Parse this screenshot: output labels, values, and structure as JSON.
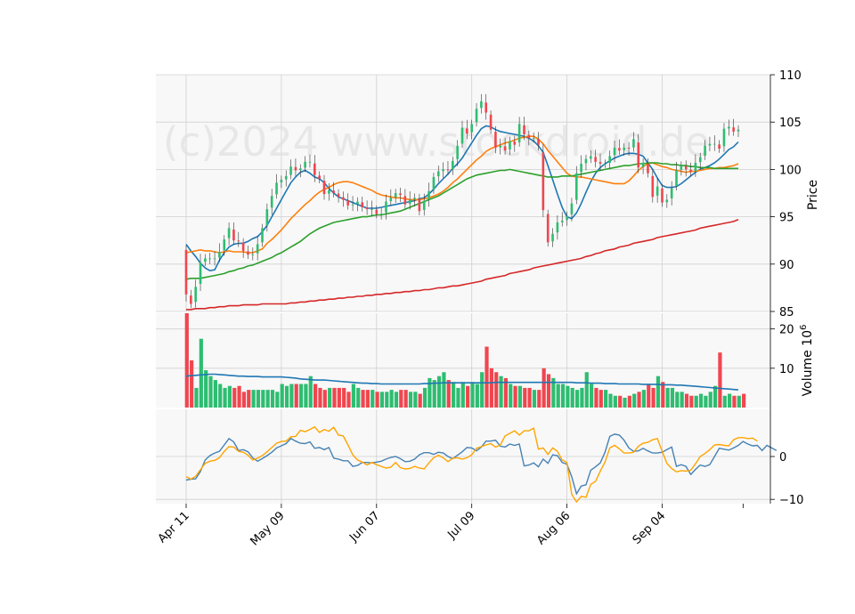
{
  "chart_data": {
    "type": "candlestick",
    "watermark": "(c)2024 www.stockdroid.de",
    "x_tick_labels": [
      "Apr 11",
      "May 09",
      "Jun 07",
      "Jul 09",
      "Aug 06",
      "Sep 04"
    ],
    "x_tick_index": [
      0,
      20,
      40,
      60,
      80,
      100
    ],
    "price_panel": {
      "ylabel": "Price",
      "ylim": [
        85,
        110
      ],
      "yticks": [
        "85",
        "90",
        "95",
        "100",
        "105",
        "110"
      ],
      "up_color": "#2ebd71",
      "down_color": "#f0464f",
      "close": [
        86.8,
        85.8,
        87.6,
        90.2,
        90.6,
        90.6,
        90.6,
        91.3,
        92.6,
        93.8,
        92.5,
        92.4,
        91.4,
        91.0,
        91.0,
        92.1,
        93.8,
        95.8,
        97.2,
        98.6,
        98.9,
        99.3,
        100.3,
        99.9,
        100.1,
        100.8,
        100.8,
        99.4,
        99.0,
        97.4,
        97.8,
        97.5,
        97.1,
        96.8,
        96.2,
        96.3,
        96.6,
        96.0,
        95.8,
        95.8,
        95.3,
        95.3,
        96.6,
        97.0,
        97.5,
        97.3,
        96.3,
        96.8,
        97.0,
        95.6,
        96.7,
        97.7,
        99.2,
        99.8,
        100.0,
        99.9,
        100.9,
        102.5,
        104.4,
        103.8,
        104.8,
        106.4,
        107.2,
        106.0,
        104.2,
        102.3,
        102.5,
        102.0,
        103.0,
        102.6,
        104.8,
        103.7,
        103.3,
        103.3,
        102.6,
        95.7,
        92.3,
        93.2,
        94.4,
        94.6,
        95.1,
        96.4,
        99.6,
        100.6,
        101.1,
        101.4,
        100.8,
        100.6,
        100.6,
        101.4,
        102.3,
        102.0,
        102.3,
        102.2,
        103.2,
        100.2,
        100.7,
        99.6,
        97.1,
        98.2,
        96.5,
        96.8,
        98.0,
        99.9,
        100.4,
        100.0,
        99.7,
        100.7,
        101.3,
        102.5,
        102.7,
        102.7,
        102.2,
        104.3,
        104.5,
        104.0,
        104.2
      ],
      "overlays": [
        {
          "color": "#1f77b4",
          "values": [
            92.1,
            91.4,
            90.8,
            90.1,
            89.6,
            89.3,
            89.4,
            90.4,
            91.2,
            91.8,
            92.1,
            92.2,
            92.2,
            92.4,
            92.7,
            92.9,
            93.4,
            94.1,
            95.0,
            95.9,
            96.8,
            97.7,
            98.6,
            99.2,
            99.7,
            99.9,
            99.6,
            99.2,
            99.0,
            98.6,
            98.0,
            97.5,
            97.1,
            96.9,
            96.7,
            96.5,
            96.3,
            96.1,
            95.9,
            95.9,
            95.9,
            96.0,
            96.1,
            96.2,
            96.3,
            96.4,
            96.5,
            96.6,
            96.7,
            96.9,
            97.0,
            97.4,
            97.9,
            98.5,
            99.0,
            99.5,
            100.1,
            100.6,
            101.2,
            102.0,
            102.8,
            103.6,
            104.3,
            104.6,
            104.5,
            104.2,
            104.0,
            103.9,
            103.8,
            103.7,
            103.6,
            103.5,
            103.3,
            103.0,
            102.5,
            101.8,
            100.4,
            98.9,
            97.4,
            96.0,
            95.0,
            94.8,
            95.4,
            96.4,
            97.6,
            98.7,
            99.6,
            100.2,
            100.6,
            100.9,
            101.2,
            101.4,
            101.6,
            101.7,
            101.7,
            101.6,
            101.4,
            100.7,
            100.0,
            99.1,
            98.3,
            98.1,
            98.1,
            98.2,
            98.5,
            98.9,
            99.3,
            99.7,
            100.0,
            100.2,
            100.4,
            100.7,
            101.1,
            101.6,
            102.1,
            102.4,
            102.9
          ]
        },
        {
          "color": "#ff7f0e",
          "values": [
            91.2,
            91.3,
            91.4,
            91.5,
            91.4,
            91.4,
            91.3,
            91.2,
            91.3,
            91.4,
            91.3,
            91.3,
            91.3,
            91.2,
            91.2,
            91.4,
            91.6,
            92.2,
            92.6,
            93.1,
            93.6,
            94.2,
            94.8,
            95.3,
            95.8,
            96.3,
            96.7,
            97.2,
            97.6,
            97.9,
            98.1,
            98.4,
            98.6,
            98.7,
            98.7,
            98.6,
            98.4,
            98.2,
            98.0,
            97.8,
            97.5,
            97.3,
            97.2,
            97.1,
            97.0,
            97.0,
            96.9,
            96.8,
            96.8,
            96.8,
            96.9,
            97.0,
            97.2,
            97.4,
            97.7,
            98.1,
            98.6,
            99.0,
            99.5,
            100.0,
            100.5,
            101.0,
            101.4,
            101.9,
            102.2,
            102.4,
            102.6,
            102.8,
            102.9,
            103.1,
            103.3,
            103.4,
            103.5,
            103.5,
            103.2,
            102.7,
            102.0,
            101.4,
            100.8,
            100.2,
            99.6,
            99.3,
            99.2,
            99.2,
            99.1,
            99.0,
            98.9,
            98.8,
            98.7,
            98.6,
            98.5,
            98.5,
            98.5,
            98.8,
            99.3,
            99.9,
            100.3,
            100.6,
            100.7,
            100.5,
            100.3,
            100.2,
            100.0,
            99.9,
            99.8,
            99.7,
            99.8,
            99.8,
            99.9,
            100.0,
            100.1,
            100.1,
            100.2,
            100.2,
            100.3,
            100.4,
            100.6
          ]
        },
        {
          "color": "#2ca02c",
          "values": [
            88.4,
            88.5,
            88.5,
            88.5,
            88.6,
            88.7,
            88.8,
            88.9,
            89.0,
            89.2,
            89.3,
            89.5,
            89.6,
            89.8,
            89.9,
            90.1,
            90.3,
            90.5,
            90.7,
            91.0,
            91.2,
            91.5,
            91.8,
            92.1,
            92.4,
            92.8,
            93.2,
            93.5,
            93.8,
            94.0,
            94.2,
            94.4,
            94.5,
            94.6,
            94.7,
            94.8,
            94.9,
            95.0,
            95.0,
            95.1,
            95.2,
            95.2,
            95.3,
            95.4,
            95.5,
            95.6,
            95.8,
            96.0,
            96.2,
            96.4,
            96.6,
            96.8,
            97.0,
            97.2,
            97.5,
            97.8,
            98.1,
            98.4,
            98.7,
            99.0,
            99.2,
            99.4,
            99.5,
            99.6,
            99.7,
            99.8,
            99.9,
            99.9,
            100.0,
            99.9,
            99.8,
            99.7,
            99.6,
            99.5,
            99.4,
            99.3,
            99.2,
            99.2,
            99.2,
            99.3,
            99.3,
            99.3,
            99.4,
            99.5,
            99.6,
            99.7,
            99.8,
            99.9,
            100.0,
            100.1,
            100.2,
            100.3,
            100.4,
            100.4,
            100.5,
            100.6,
            100.6,
            100.7,
            100.7,
            100.7,
            100.6,
            100.6,
            100.5,
            100.5,
            100.4,
            100.4,
            100.3,
            100.3,
            100.2,
            100.2,
            100.2,
            100.1,
            100.1,
            100.1,
            100.1,
            100.1,
            100.1
          ]
        },
        {
          "color": "#d62728",
          "values": [
            85.2,
            85.2,
            85.3,
            85.3,
            85.3,
            85.4,
            85.4,
            85.5,
            85.5,
            85.6,
            85.6,
            85.6,
            85.7,
            85.7,
            85.7,
            85.7,
            85.8,
            85.8,
            85.8,
            85.8,
            85.8,
            85.8,
            85.9,
            85.9,
            86.0,
            86.0,
            86.1,
            86.1,
            86.2,
            86.2,
            86.3,
            86.3,
            86.4,
            86.4,
            86.5,
            86.5,
            86.6,
            86.6,
            86.7,
            86.7,
            86.8,
            86.8,
            86.9,
            86.9,
            87.0,
            87.0,
            87.1,
            87.1,
            87.2,
            87.2,
            87.3,
            87.3,
            87.4,
            87.5,
            87.5,
            87.6,
            87.7,
            87.7,
            87.8,
            87.9,
            88.0,
            88.1,
            88.2,
            88.4,
            88.5,
            88.6,
            88.7,
            88.8,
            89.0,
            89.1,
            89.2,
            89.3,
            89.4,
            89.6,
            89.7,
            89.8,
            89.9,
            90.0,
            90.1,
            90.2,
            90.3,
            90.4,
            90.5,
            90.6,
            90.8,
            90.9,
            91.1,
            91.2,
            91.4,
            91.5,
            91.6,
            91.8,
            91.9,
            92.0,
            92.2,
            92.3,
            92.4,
            92.5,
            92.6,
            92.8,
            92.9,
            93.0,
            93.1,
            93.2,
            93.3,
            93.4,
            93.5,
            93.6,
            93.8,
            93.9,
            94.0,
            94.1,
            94.2,
            94.3,
            94.4,
            94.5,
            94.7
          ]
        }
      ]
    },
    "volume_panel": {
      "ylabel": "Volume  10",
      "ylabel_exp": "6",
      "ylim": [
        0,
        24
      ],
      "yticks": [
        "10",
        "20"
      ],
      "ytick_values": [
        10,
        20
      ],
      "avg_color": "#1f77b4",
      "values": [
        24.0,
        12.0,
        5.0,
        17.5,
        9.5,
        8.0,
        7.0,
        6.0,
        5.0,
        5.5,
        5.0,
        5.5,
        4.0,
        4.5,
        4.5,
        4.5,
        4.5,
        4.5,
        4.5,
        4.0,
        6.0,
        5.5,
        6.0,
        6.0,
        6.0,
        6.0,
        8.0,
        6.0,
        5.0,
        4.5,
        5.0,
        5.0,
        5.0,
        5.0,
        4.0,
        6.0,
        5.0,
        4.5,
        4.5,
        4.5,
        4.0,
        4.0,
        4.0,
        4.5,
        4.0,
        4.5,
        4.5,
        4.0,
        4.0,
        3.5,
        5.0,
        7.5,
        7.0,
        8.0,
        9.0,
        7.0,
        6.5,
        5.0,
        6.5,
        5.5,
        6.5,
        6.0,
        9.0,
        15.5,
        10.0,
        9.0,
        8.0,
        7.5,
        6.0,
        5.5,
        5.5,
        5.0,
        5.0,
        4.5,
        4.5,
        10.0,
        8.5,
        7.5,
        6.0,
        6.0,
        5.5,
        5.0,
        4.5,
        5.0,
        9.0,
        6.0,
        5.0,
        4.5,
        4.5,
        3.5,
        3.0,
        3.0,
        2.5,
        3.0,
        3.5,
        4.0,
        4.5,
        6.0,
        5.0,
        8.0,
        6.5,
        5.0,
        5.0,
        4.0,
        4.0,
        3.5,
        3.0,
        3.0,
        3.5,
        3.0,
        4.0,
        5.5,
        14.0,
        3.0,
        3.5,
        3.0,
        3.0,
        3.5
      ],
      "avg": [
        8.0,
        8.1,
        8.2,
        8.3,
        8.4,
        8.5,
        8.5,
        8.4,
        8.3,
        8.2,
        8.1,
        8.0,
        8.0,
        7.9,
        7.9,
        7.9,
        7.8,
        7.8,
        7.8,
        7.8,
        7.8,
        7.7,
        7.6,
        7.5,
        7.3,
        7.2,
        7.1,
        7.0,
        7.0,
        7.0,
        6.9,
        6.8,
        6.7,
        6.6,
        6.5,
        6.4,
        6.3,
        6.2,
        6.2,
        6.1,
        6.1,
        6.0,
        6.0,
        6.0,
        6.0,
        6.0,
        6.0,
        6.0,
        6.0,
        6.0,
        6.1,
        6.1,
        6.2,
        6.2,
        6.3,
        6.3,
        6.3,
        6.3,
        6.3,
        6.3,
        6.3,
        6.3,
        6.3,
        6.3,
        6.3,
        6.4,
        6.4,
        6.4,
        6.4,
        6.4,
        6.4,
        6.4,
        6.4,
        6.4,
        6.4,
        6.4,
        6.4,
        6.4,
        6.4,
        6.4,
        6.4,
        6.4,
        6.3,
        6.3,
        6.3,
        6.2,
        6.2,
        6.2,
        6.1,
        6.1,
        6.1,
        6.0,
        6.0,
        6.0,
        6.0,
        6.0,
        5.9,
        5.9,
        5.9,
        5.9,
        5.8,
        5.8,
        5.8,
        5.7,
        5.7,
        5.6,
        5.5,
        5.4,
        5.3,
        5.2,
        5.1,
        5.0,
        4.9,
        4.8,
        4.7,
        4.6,
        4.5
      ]
    },
    "indicator_panel": {
      "ylim": [
        -11,
        11
      ],
      "yticks": [
        "−10",
        "0"
      ],
      "ytick_values": [
        -10,
        0
      ],
      "series": [
        {
          "color": "#4682b4",
          "values": [
            -5.5,
            -5.3,
            -5.2,
            -3.5,
            -0.8,
            0.2,
            0.8,
            1.2,
            2.7,
            4.2,
            3.4,
            1.4,
            1.6,
            1.1,
            -0.3,
            -1.1,
            -0.5,
            0.2,
            1.0,
            2.0,
            2.5,
            3.0,
            4.2,
            3.6,
            3.1,
            3.0,
            3.4,
            1.9,
            2.1,
            1.6,
            2.1,
            -0.4,
            -0.6,
            -1.0,
            -1.0,
            -2.3,
            -2.1,
            -1.4,
            -1.4,
            -1.5,
            -1.3,
            -1.1,
            -0.6,
            -0.2,
            0.0,
            -0.5,
            -1.2,
            -1.1,
            -0.6,
            0.4,
            0.9,
            0.9,
            0.5,
            1.0,
            0.8,
            0.0,
            -0.5,
            0.3,
            1.1,
            2.1,
            2.0,
            1.3,
            2.2,
            3.6,
            3.6,
            3.8,
            2.4,
            2.2,
            2.9,
            2.6,
            2.9,
            -2.2,
            -2.0,
            -1.5,
            -2.4,
            -0.6,
            -1.6,
            0.4,
            0.2,
            -1.4,
            -1.8,
            -4.7,
            -8.7,
            -6.9,
            -6.6,
            -3.2,
            -2.4,
            -1.5,
            1.0,
            4.7,
            5.2,
            5.0,
            3.8,
            2.0,
            1.2,
            1.3,
            1.9,
            1.3,
            0.8,
            0.8,
            1.0,
            1.6,
            2.2,
            -2.3,
            -1.9,
            -2.3,
            -4.2,
            -3.0,
            -2.0,
            -2.3,
            -1.9,
            0.0,
            1.9,
            1.7,
            1.5,
            2.0,
            2.6,
            3.5,
            2.9,
            2.5,
            2.6,
            1.4,
            2.6,
            2.0,
            1.4
          ]
        },
        {
          "color": "#ffa500",
          "values": [
            -4.7,
            -5.3,
            -4.6,
            -3.1,
            -1.6,
            -1.1,
            -0.9,
            -0.3,
            1.2,
            2.3,
            2.2,
            1.2,
            1.0,
            0.3,
            -0.8,
            -0.4,
            0.2,
            1.1,
            2.1,
            3.1,
            3.5,
            3.6,
            4.6,
            4.7,
            6.1,
            5.8,
            6.3,
            6.9,
            5.6,
            6.3,
            5.9,
            6.8,
            5.0,
            4.8,
            2.7,
            0.4,
            -0.8,
            -1.3,
            -2.0,
            -1.4,
            -1.9,
            -2.3,
            -2.7,
            -2.5,
            -1.4,
            -2.6,
            -2.9,
            -2.8,
            -2.3,
            -2.7,
            -2.9,
            -1.5,
            -0.3,
            0.3,
            -0.3,
            -1.2,
            -0.4,
            -0.3,
            -0.6,
            -0.3,
            0.4,
            1.9,
            2.3,
            2.7,
            3.0,
            2.2,
            2.7,
            4.8,
            5.4,
            6.0,
            5.0,
            6.0,
            6.0,
            6.6,
            1.7,
            2.0,
            0.5,
            2.0,
            1.2,
            -0.8,
            -1.4,
            -8.8,
            -10.6,
            -9.3,
            -9.5,
            -6.5,
            -5.8,
            -3.4,
            -1.3,
            2.0,
            2.6,
            1.8,
            0.8,
            0.8,
            1.0,
            2.4,
            3.1,
            3.3,
            3.9,
            4.2,
            1.2,
            -1.6,
            -2.8,
            -3.6,
            -3.3,
            -3.4,
            -3.2,
            -1.7,
            0.0,
            0.7,
            1.6,
            2.7,
            2.8,
            2.6,
            2.5,
            3.9,
            4.4,
            4.4,
            4.2,
            4.3,
            3.6
          ]
        }
      ]
    }
  }
}
